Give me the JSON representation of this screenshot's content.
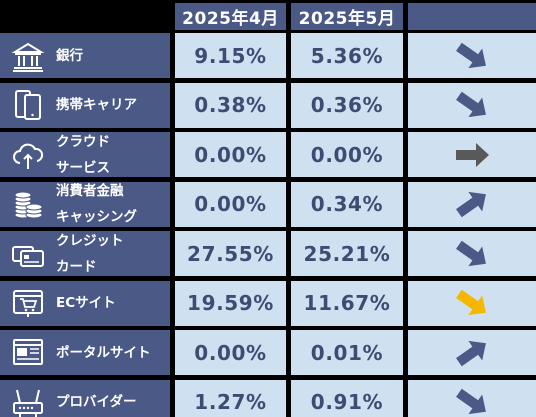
{
  "chart_data": {
    "type": "table",
    "columns": [
      "2025年4月",
      "2025年5月"
    ],
    "rows": [
      {
        "label": "銀行",
        "icon": "bank-icon",
        "apr": "9.15%",
        "may": "5.36%",
        "apr_value": 9.15,
        "may_value": 5.36,
        "trend": "down",
        "trend_color": "#4a5986"
      },
      {
        "label": "携帯キャリア",
        "icon": "smartphone-icon",
        "apr": "0.38%",
        "may": "0.36%",
        "apr_value": 0.38,
        "may_value": 0.36,
        "trend": "down",
        "trend_color": "#4a5986"
      },
      {
        "label": "クラウド\nサービス",
        "icon": "cloud-icon",
        "apr": "0.00%",
        "may": "0.00%",
        "apr_value": 0.0,
        "may_value": 0.0,
        "trend": "flat",
        "trend_color": "#595959"
      },
      {
        "label": "消費者金融\nキャッシング",
        "icon": "coins-icon",
        "apr": "0.00%",
        "may": "0.34%",
        "apr_value": 0.0,
        "may_value": 0.34,
        "trend": "up",
        "trend_color": "#4a5986"
      },
      {
        "label": "クレジット\nカード",
        "icon": "credit-card-icon",
        "apr": "27.55%",
        "may": "25.21%",
        "apr_value": 27.55,
        "may_value": 25.21,
        "trend": "down",
        "trend_color": "#4a5986"
      },
      {
        "label": "ECサイト",
        "icon": "shopping-cart-icon",
        "apr": "19.59%",
        "may": "11.67%",
        "apr_value": 19.59,
        "may_value": 11.67,
        "trend": "down",
        "trend_color": "#f5b800"
      },
      {
        "label": "ポータルサイト",
        "icon": "web-page-icon",
        "apr": "0.00%",
        "may": "0.01%",
        "apr_value": 0.0,
        "may_value": 0.01,
        "trend": "up",
        "trend_color": "#4a5986"
      },
      {
        "label": "プロバイダー",
        "icon": "router-icon",
        "apr": "1.27%",
        "may": "0.91%",
        "apr_value": 1.27,
        "may_value": 0.91,
        "trend": "down",
        "trend_color": "#4a5986"
      }
    ]
  },
  "colors": {
    "header_bg": "#4a5986",
    "cell_bg": "#cfe0f1",
    "value_text": "#3f4c72",
    "background": "#000000"
  }
}
